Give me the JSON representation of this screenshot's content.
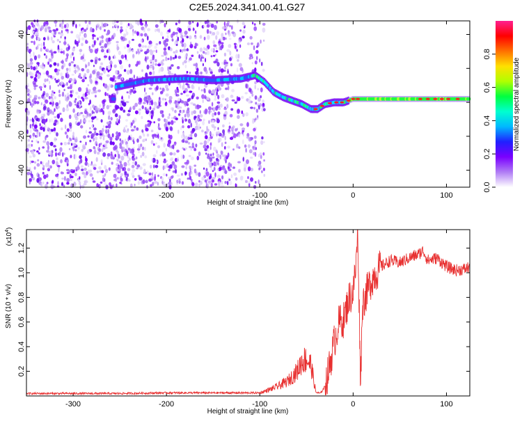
{
  "title": "C2E5.2024.341.00.41.G27",
  "chart_data": [
    {
      "type": "heatmap",
      "title": "",
      "xlabel": "Height of straight line (km)",
      "ylabel": "Frequency (Hz)",
      "xlim": [
        -350,
        125
      ],
      "ylim": [
        -50,
        48
      ],
      "xticks": [
        -300,
        -200,
        -100,
        0,
        100
      ],
      "yticks": [
        -40,
        -20,
        0,
        20,
        40
      ],
      "colorbar": {
        "label": "Normalized spectral amplitude",
        "range": [
          0.0,
          1.0
        ],
        "ticks": [
          "0.0",
          "0.2",
          "0.4",
          "0.6",
          "0.8"
        ],
        "colors": [
          "#ffffff",
          "#b07cf5",
          "#7a00ff",
          "#2020ff",
          "#00b8ff",
          "#00ffd0",
          "#00ff40",
          "#b0ff00",
          "#ffe000",
          "#ff7000",
          "#ff0000",
          "#ff2090"
        ]
      },
      "ridge": {
        "x": [
          -255,
          -220,
          -180,
          -150,
          -120,
          -105,
          -95,
          -85,
          -75,
          -65,
          -55,
          -45,
          -38,
          -30,
          -20,
          -10,
          0,
          20,
          50,
          80,
          110,
          125
        ],
        "frequency": [
          9,
          13,
          14,
          13,
          14,
          16,
          12,
          6,
          3,
          1,
          -1,
          -4,
          -4,
          -1,
          0,
          0,
          2,
          2,
          2,
          2,
          2,
          2
        ]
      }
    },
    {
      "type": "line",
      "title": "",
      "xlabel": "Height of straight line (km)",
      "ylabel": "SNR (10 * v/v)",
      "exponent_label": "(x10",
      "exponent_power": "4",
      "exponent_close": ")",
      "xlim": [
        -350,
        125
      ],
      "ylim": [
        0,
        1.35
      ],
      "xticks": [
        -300,
        -200,
        -100,
        0,
        100
      ],
      "yticks": [
        "0.2",
        "0.4",
        "0.6",
        "0.8",
        "1.0",
        "1.2"
      ],
      "series": [
        {
          "color": "#e83030",
          "x": [
            -350,
            -300,
            -250,
            -200,
            -150,
            -100,
            -90,
            -80,
            -70,
            -60,
            -55,
            -50,
            -45,
            -40,
            -35,
            -30,
            -25,
            -20,
            -15,
            -10,
            -5,
            0,
            3,
            5,
            8,
            10,
            15,
            20,
            25,
            30,
            40,
            50,
            60,
            70,
            75,
            80,
            90,
            100,
            110,
            120,
            125
          ],
          "y": [
            0.02,
            0.02,
            0.02,
            0.025,
            0.025,
            0.025,
            0.05,
            0.08,
            0.12,
            0.2,
            0.28,
            0.3,
            0.25,
            0.03,
            0.02,
            0.08,
            0.25,
            0.45,
            0.6,
            0.62,
            0.78,
            0.85,
            1.05,
            1.35,
            0.1,
            0.75,
            0.85,
            0.95,
            1.0,
            1.05,
            1.1,
            1.08,
            1.12,
            1.15,
            1.18,
            1.1,
            1.12,
            1.05,
            1.02,
            1.03,
            1.05
          ]
        }
      ]
    }
  ]
}
